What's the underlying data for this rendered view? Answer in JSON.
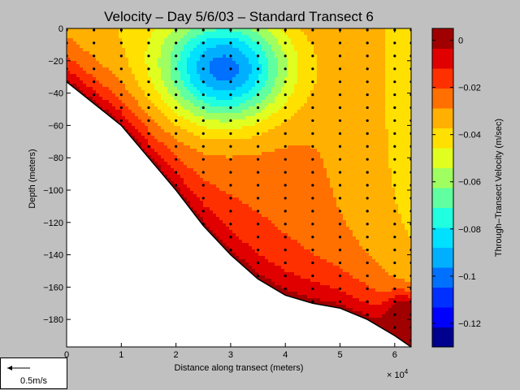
{
  "chart_data": {
    "type": "heatmap",
    "title": "Velocity – Day 5/6/03 – Standard Transect 6",
    "xlabel": "Distance along transect (meters)",
    "ylabel": "Depth (meters)",
    "x_exponent_label": "× 10",
    "x_exponent_power": "4",
    "xlim": [
      0,
      6.3
    ],
    "ylim": [
      -197,
      0
    ],
    "x_ticks": [
      "0",
      "1",
      "2",
      "3",
      "4",
      "5",
      "6"
    ],
    "x_tick_values": [
      0,
      1,
      2,
      3,
      4,
      5,
      6
    ],
    "y_ticks": [
      "0",
      "−20",
      "−40",
      "−60",
      "−80",
      "−100",
      "−120",
      "−140",
      "−160",
      "−180"
    ],
    "y_tick_values": [
      0,
      -20,
      -40,
      -60,
      -80,
      -100,
      -120,
      -140,
      -160,
      -180
    ],
    "bottom_profile": {
      "x": [
        0,
        1,
        1.5,
        2,
        2.5,
        3,
        3.5,
        4,
        4.5,
        5,
        5.5,
        6,
        6.3
      ],
      "depth": [
        -33,
        -60,
        -80,
        -100,
        -122,
        -140,
        -155,
        -165,
        -170,
        -173,
        -180,
        -190,
        -197
      ]
    },
    "colorbar": {
      "label": "Through–Transect Velocity (m/sec)",
      "range": [
        -0.13,
        0.005
      ],
      "tick_labels": [
        "0",
        "−0.02",
        "−0.04",
        "−0.06",
        "−0.08",
        "−0.1",
        "−0.12"
      ],
      "tick_values": [
        0,
        -0.02,
        -0.04,
        -0.06,
        -0.08,
        -0.1,
        -0.12
      ],
      "colors": [
        "#00008f",
        "#0000ff",
        "#0030ff",
        "#0070ff",
        "#00b0ff",
        "#00e0ff",
        "#20ffe0",
        "#60ffa0",
        "#a0ff60",
        "#e0ff20",
        "#ffe000",
        "#ffb000",
        "#ff7000",
        "#ff3000",
        "#e00000",
        "#a00000"
      ]
    },
    "core": {
      "x": 2.9,
      "depth": -25,
      "value": -0.125
    },
    "stations_x": [
      0,
      0.5,
      1,
      1.5,
      2,
      2.5,
      3,
      3.5,
      4,
      4.5,
      5,
      5.5,
      6,
      6.3
    ]
  },
  "scale_legend": {
    "label": "0.5m/s"
  }
}
